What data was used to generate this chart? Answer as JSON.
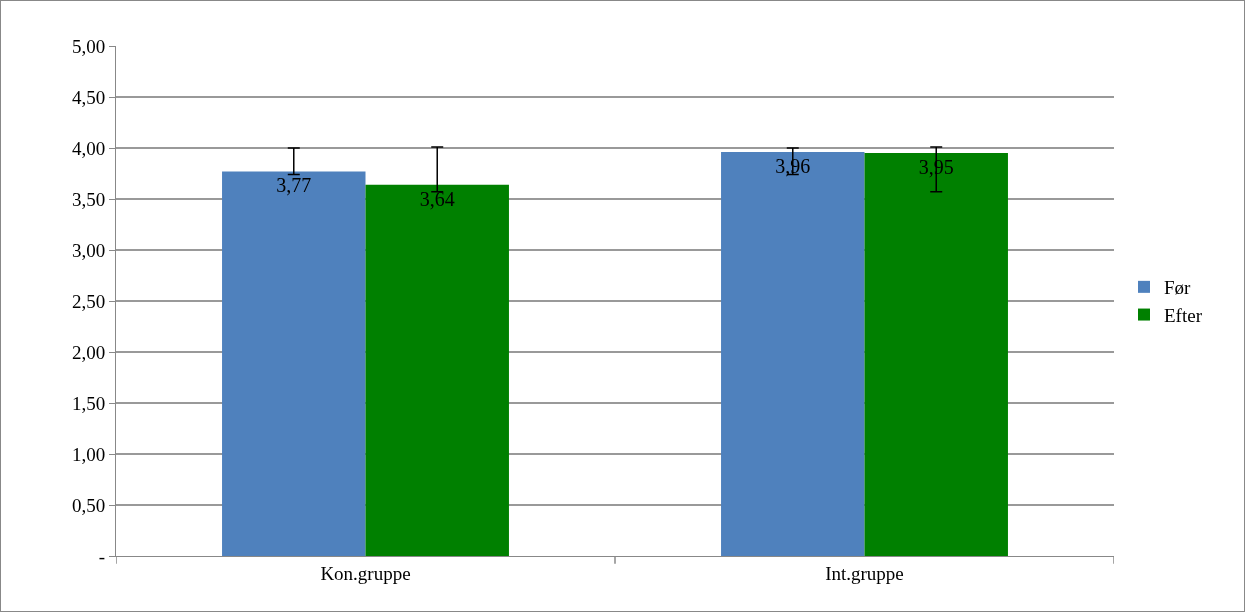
{
  "chart_data": {
    "type": "bar",
    "categories": [
      "Kon.gruppe",
      "Int.gruppe"
    ],
    "series": [
      {
        "name": "Før",
        "color": "#4f81bd",
        "values": [
          3.77,
          3.96
        ],
        "value_labels": [
          "3,77",
          "3,96"
        ],
        "errors": [
          [
            3.74,
            4.0
          ],
          [
            3.74,
            4.0
          ]
        ]
      },
      {
        "name": "Efter",
        "color": "#008000",
        "values": [
          3.64,
          3.95
        ],
        "value_labels": [
          "3,64",
          "3,95"
        ],
        "errors": [
          [
            3.57,
            4.01
          ],
          [
            3.57,
            4.01
          ]
        ]
      }
    ],
    "ylim": [
      0,
      5
    ],
    "yticks": [
      {
        "value": 0,
        "label": "-"
      },
      {
        "value": 0.5,
        "label": "0,50"
      },
      {
        "value": 1,
        "label": "1,00"
      },
      {
        "value": 1.5,
        "label": "1,50"
      },
      {
        "value": 2,
        "label": "2,00"
      },
      {
        "value": 2.5,
        "label": "2,50"
      },
      {
        "value": 3,
        "label": "3,00"
      },
      {
        "value": 3.5,
        "label": "3,50"
      },
      {
        "value": 4,
        "label": "4,00"
      },
      {
        "value": 4.5,
        "label": "4,50"
      },
      {
        "value": 5,
        "label": "5,00"
      }
    ],
    "grid": "y",
    "legend": "right"
  }
}
